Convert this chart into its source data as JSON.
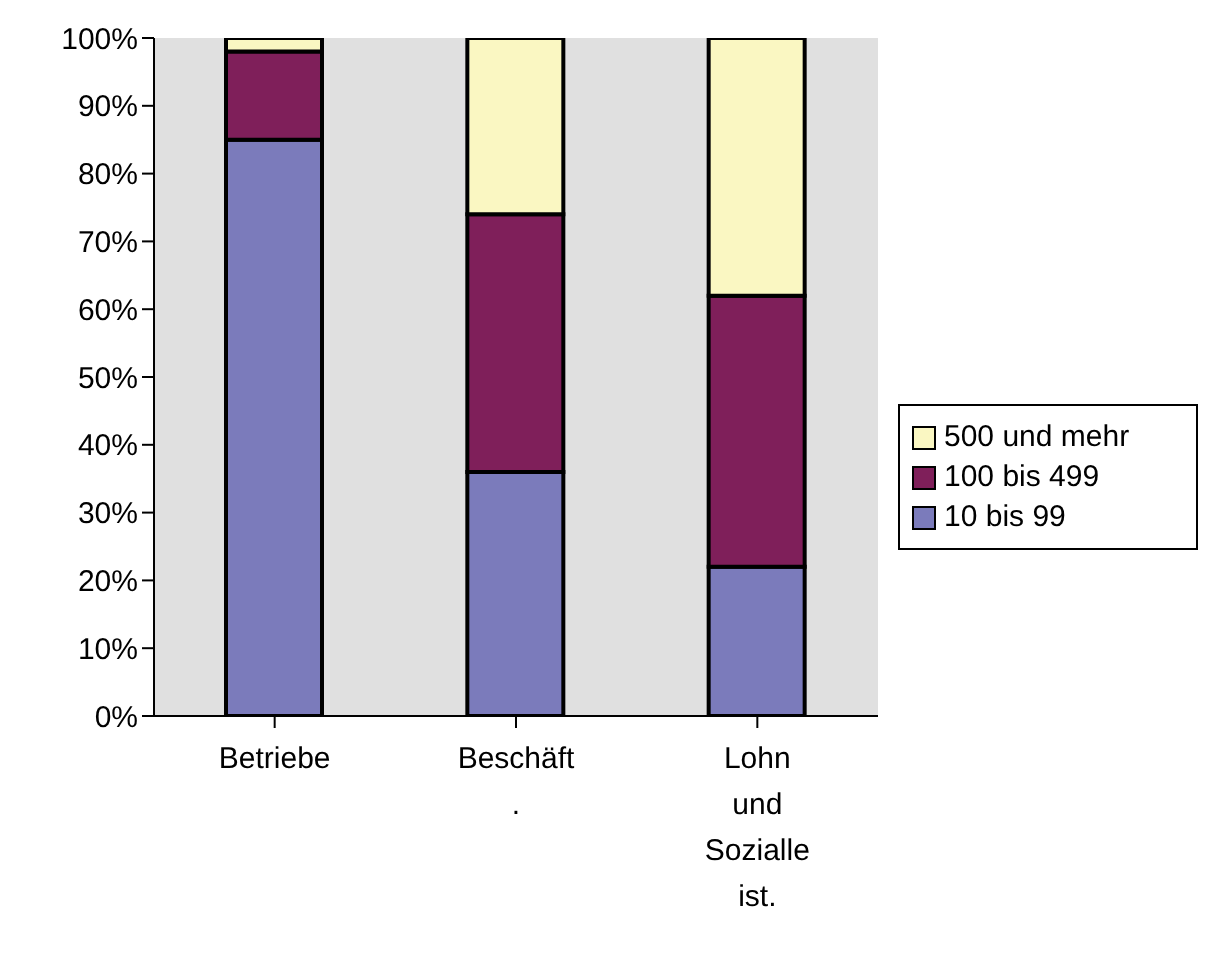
{
  "chart_data": {
    "type": "bar",
    "stacked": true,
    "categories": [
      "Betriebe",
      "Beschäft.",
      "Lohn und Sozialleist."
    ],
    "series": [
      {
        "name": "10 bis 99",
        "color": "#7b7bbb",
        "values": [
          85,
          36,
          22
        ]
      },
      {
        "name": "100 bis 499",
        "color": "#7f1f5a",
        "values": [
          13,
          38,
          40
        ]
      },
      {
        "name": "500 und mehr",
        "color": "#faf7c2",
        "values": [
          2,
          26,
          38
        ]
      }
    ],
    "ylim": [
      0,
      100
    ],
    "yticks": [
      {
        "value": 0,
        "label": "0%"
      },
      {
        "value": 10,
        "label": "10%"
      },
      {
        "value": 20,
        "label": "20%"
      },
      {
        "value": 30,
        "label": "30%"
      },
      {
        "value": 40,
        "label": "40%"
      },
      {
        "value": 50,
        "label": "50%"
      },
      {
        "value": 60,
        "label": "60%"
      },
      {
        "value": 70,
        "label": "70%"
      },
      {
        "value": 80,
        "label": "80%"
      },
      {
        "value": 90,
        "label": "90%"
      },
      {
        "value": 100,
        "label": "100%"
      }
    ],
    "grid": false,
    "legend": "right"
  }
}
